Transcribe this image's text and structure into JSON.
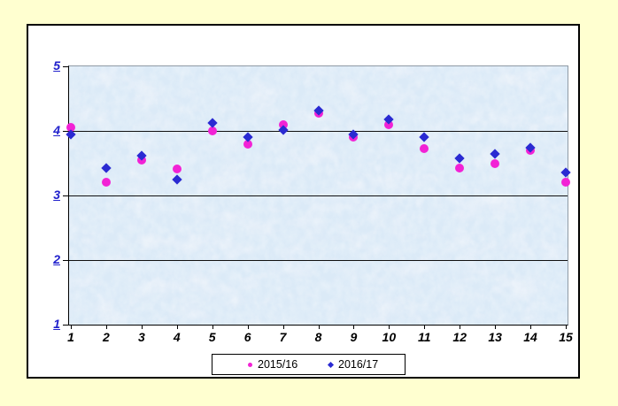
{
  "page": {
    "background_color": "#FFFFD0",
    "chart_frame_color": "#FFFFFF"
  },
  "chart_data": {
    "type": "scatter",
    "title": "",
    "xlabel": "",
    "ylabel": "",
    "x": [
      1,
      2,
      3,
      4,
      5,
      6,
      7,
      8,
      9,
      10,
      11,
      12,
      13,
      14,
      15
    ],
    "series": [
      {
        "name": "2015/16",
        "marker": "circle",
        "color": "#f222d5",
        "values": [
          4.05,
          3.2,
          3.55,
          3.41,
          4.0,
          3.8,
          4.1,
          4.27,
          3.91,
          4.1,
          3.72,
          3.42,
          3.5,
          3.7,
          3.2
        ]
      },
      {
        "name": "2016/17",
        "marker": "diamond",
        "color": "#2a2ad2",
        "values": [
          3.95,
          3.42,
          3.61,
          3.24,
          4.13,
          3.9,
          4.02,
          4.31,
          3.94,
          4.18,
          3.9,
          3.57,
          3.64,
          3.74,
          3.35
        ]
      }
    ],
    "ylim": [
      1,
      5
    ],
    "yticks": [
      1,
      2,
      3,
      4,
      5
    ],
    "grid": "horizontal",
    "gridline_color": "#111111",
    "axis_label_color": "#2020cc",
    "plot_background": "blue-tissue-paper-texture",
    "legend_position": "bottom"
  }
}
